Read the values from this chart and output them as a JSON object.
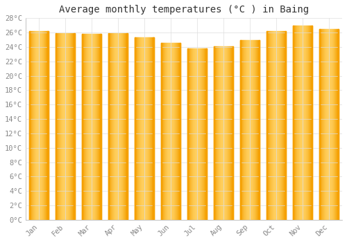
{
  "title": "Average monthly temperatures (°C ) in Baing",
  "months": [
    "Jan",
    "Feb",
    "Mar",
    "Apr",
    "May",
    "Jun",
    "Jul",
    "Aug",
    "Sep",
    "Oct",
    "Nov",
    "Dec"
  ],
  "values": [
    26.2,
    25.9,
    25.8,
    25.9,
    25.3,
    24.6,
    23.8,
    24.1,
    25.0,
    26.2,
    27.0,
    26.5
  ],
  "bar_color_center": "#FFD060",
  "bar_color_edge": "#F5A000",
  "background_color": "#FFFFFF",
  "grid_color": "#DDDDDD",
  "ylim": [
    0,
    28
  ],
  "ytick_step": 2,
  "title_fontsize": 10,
  "tick_fontsize": 7.5,
  "tick_color": "#888888",
  "font_family": "monospace"
}
